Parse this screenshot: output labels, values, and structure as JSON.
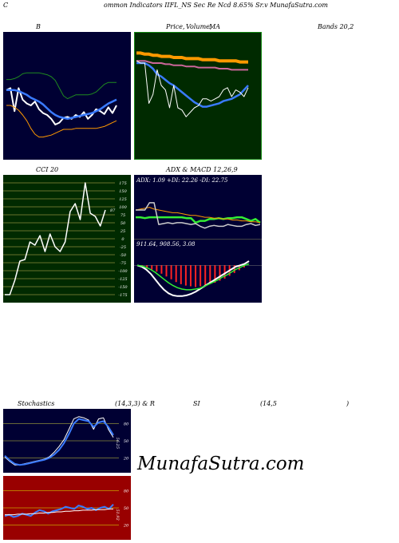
{
  "header": {
    "c": "C",
    "title": "ommon  Indicators IIFL_NS Sec Re   Ncd 8.65% Sr.v   MunafaSutra.com"
  },
  "labels": {
    "bollinger": "B",
    "price_ma_a": "Price,",
    "price_ma_b": "Volume,",
    "price_ma_c": "MA",
    "bands": "Bands 20,2",
    "cci": "CCI 20",
    "adx_macd": "ADX  & MACD 12,26,9",
    "stochastics": "Stochastics",
    "stoch_params": "(14,3,3) & R",
    "rsi": "SI",
    "rsi_params": "(14,5",
    "rsi_close": ")"
  },
  "watermark": "MunafaSutra.com",
  "colors": {
    "navy": "#000033",
    "dark_green": "#002a00",
    "dark_red": "#990000",
    "blue": "#3a7bff",
    "green": "#33ee33",
    "orange": "#ff9900",
    "white": "#ffffff"
  },
  "chart_data": [
    {
      "type": "line",
      "name": "bollinger",
      "y_range": [
        0,
        100
      ],
      "series": [
        {
          "color": "#1f8a1f",
          "values": [
            67,
            67,
            68,
            70,
            73,
            74,
            74,
            74,
            74,
            73,
            72,
            70,
            66,
            58,
            50,
            47,
            49,
            51,
            51,
            51,
            51,
            52,
            54,
            58,
            62,
            64,
            64,
            64
          ]
        },
        {
          "color": "#ffffff",
          "values": [
            56,
            58,
            34,
            58,
            46,
            42,
            40,
            44,
            36,
            32,
            30,
            26,
            20,
            22,
            27,
            28,
            26,
            30,
            28,
            33,
            26,
            30,
            36,
            34,
            31,
            38,
            32,
            40
          ]
        },
        {
          "color": "#3a7bff",
          "values": [
            56,
            56,
            56,
            55,
            53,
            51,
            48,
            46,
            44,
            41,
            37,
            33,
            30,
            28,
            27,
            26,
            27,
            28,
            29,
            30,
            31,
            32,
            34,
            36,
            39,
            42,
            44,
            46
          ]
        },
        {
          "color": "#ff9900",
          "values": [
            40,
            40,
            38,
            35,
            30,
            24,
            16,
            10,
            7,
            7,
            8,
            9,
            11,
            13,
            15,
            15,
            15,
            16,
            16,
            16,
            16,
            16,
            16,
            17,
            18,
            20,
            22,
            24
          ]
        }
      ]
    },
    {
      "type": "line",
      "name": "price_ma",
      "y_range": [
        0,
        100
      ],
      "series": [
        {
          "color": "#ff9900",
          "values": [
            89,
            89,
            88,
            88,
            87,
            87,
            86,
            86,
            86,
            85,
            85,
            85,
            84,
            84,
            84,
            84,
            83,
            83,
            83,
            83,
            82,
            82,
            82,
            82,
            82,
            81,
            81,
            81
          ]
        },
        {
          "color": "#cc6699",
          "values": [
            82,
            82,
            82,
            81,
            80,
            80,
            80,
            79,
            79,
            78,
            78,
            78,
            77,
            77,
            77,
            76,
            76,
            76,
            76,
            76,
            75,
            75,
            75,
            74,
            74,
            74,
            74,
            74
          ]
        },
        {
          "color": "#3a7bff",
          "values": [
            80,
            80,
            80,
            78,
            75,
            70,
            68,
            65,
            62,
            60,
            57,
            54,
            51,
            48,
            45,
            43,
            41,
            41,
            42,
            43,
            44,
            46,
            47,
            48,
            50,
            52,
            56,
            60
          ]
        },
        {
          "color": "#ffffff",
          "values": [
            82,
            80,
            80,
            44,
            52,
            74,
            60,
            56,
            40,
            60,
            40,
            38,
            32,
            36,
            40,
            42,
            48,
            48,
            46,
            48,
            50,
            56,
            58,
            50,
            56,
            54,
            50,
            58
          ]
        }
      ]
    },
    {
      "type": "line",
      "name": "cci",
      "y_range": [
        -200,
        200
      ],
      "ticks": [
        "175",
        "150",
        "125",
        "100",
        "75",
        "50",
        "25",
        "0",
        "-25",
        "-50",
        "-75",
        "-100",
        "-125",
        "-150",
        "-175"
      ],
      "value_label": "87",
      "series": [
        {
          "color": "#ffffff",
          "values": [
            -175,
            -175,
            -130,
            -70,
            -65,
            -10,
            -20,
            10,
            -40,
            15,
            -25,
            -40,
            -10,
            85,
            110,
            60,
            175,
            80,
            70,
            40,
            90
          ]
        }
      ]
    },
    {
      "type": "line",
      "name": "adx",
      "y_range": [
        0,
        60
      ],
      "value_label": "ADX: 1.09  +DI: 22.26  -DI: 22.75",
      "series": [
        {
          "color": "#33ee33",
          "values": [
            22,
            22,
            21,
            22,
            22,
            22,
            22,
            22,
            22,
            22,
            22,
            21,
            21,
            16,
            18,
            18,
            20,
            20,
            21,
            20,
            21,
            21,
            22,
            22,
            20,
            18,
            20,
            16
          ]
        },
        {
          "color": "#ff9900",
          "values": [
            30,
            31,
            32,
            33,
            31,
            30,
            29,
            28,
            27,
            27,
            26,
            25,
            24,
            24,
            23,
            22,
            22,
            21,
            21,
            20,
            20,
            19,
            19,
            18,
            18,
            17,
            17,
            16
          ]
        },
        {
          "color": "#cccccc",
          "values": [
            30,
            30,
            30,
            38,
            38,
            14,
            15,
            16,
            15,
            16,
            16,
            15,
            14,
            15,
            12,
            10,
            12,
            13,
            12,
            12,
            14,
            13,
            12,
            12,
            14,
            15,
            13,
            14
          ]
        }
      ]
    },
    {
      "type": "bar",
      "name": "macd",
      "y_range": [
        -50,
        30
      ],
      "value_label": "911.64,   908.56,   3.08",
      "histogram": [
        0,
        -2,
        -4,
        -6,
        -9,
        -12,
        -16,
        -20,
        -24,
        -27,
        -29,
        -30,
        -31,
        -30,
        -29,
        -27,
        -25,
        -22,
        -19,
        -15,
        -11,
        -7,
        -3,
        0
      ],
      "series": [
        {
          "color": "#ffffff",
          "values": [
            0,
            -2,
            -6,
            -12,
            -20,
            -28,
            -35,
            -40,
            -43,
            -44,
            -44,
            -43,
            -41,
            -38,
            -34,
            -30,
            -26,
            -22,
            -18,
            -14,
            -10,
            -6,
            -2,
            0,
            2,
            6
          ]
        },
        {
          "color": "#33ee33",
          "values": [
            0,
            -1,
            -3,
            -6,
            -10,
            -15,
            -20,
            -25,
            -29,
            -32,
            -34,
            -35,
            -35,
            -34,
            -33,
            -30,
            -27,
            -24,
            -21,
            -17,
            -14,
            -10,
            -6,
            -3,
            0,
            2
          ]
        }
      ]
    },
    {
      "type": "line",
      "name": "stochastics",
      "y_range": [
        0,
        100
      ],
      "ticks": [
        "80",
        "50",
        "20"
      ],
      "value_label": "56.25",
      "series": [
        {
          "color": "#ffffff",
          "values": [
            22,
            14,
            8,
            8,
            10,
            12,
            14,
            16,
            18,
            22,
            30,
            40,
            52,
            70,
            88,
            92,
            90,
            86,
            70,
            88,
            90,
            70,
            56
          ]
        },
        {
          "color": "#3a7bff",
          "values": [
            24,
            16,
            10,
            8,
            9,
            11,
            13,
            15,
            17,
            20,
            26,
            34,
            46,
            62,
            80,
            88,
            86,
            84,
            74,
            82,
            84,
            74,
            60
          ]
        }
      ]
    },
    {
      "type": "line",
      "name": "rsi",
      "y_range": [
        0,
        100
      ],
      "ticks": [
        "80",
        "50",
        "20"
      ],
      "value_label": "51.92",
      "series": [
        {
          "color": "#3a7bff",
          "values": [
            36,
            38,
            34,
            36,
            40,
            38,
            36,
            42,
            46,
            44,
            40,
            44,
            46,
            48,
            52,
            50,
            48,
            54,
            52,
            48,
            50,
            46,
            50,
            52,
            48,
            56
          ]
        },
        {
          "color": "#ffffff",
          "values": [
            38,
            38,
            38,
            39,
            39,
            39,
            40,
            40,
            41,
            41,
            42,
            42,
            43,
            43,
            44,
            44,
            45,
            45,
            46,
            46,
            46,
            47,
            47,
            47,
            48,
            48
          ]
        }
      ]
    }
  ]
}
